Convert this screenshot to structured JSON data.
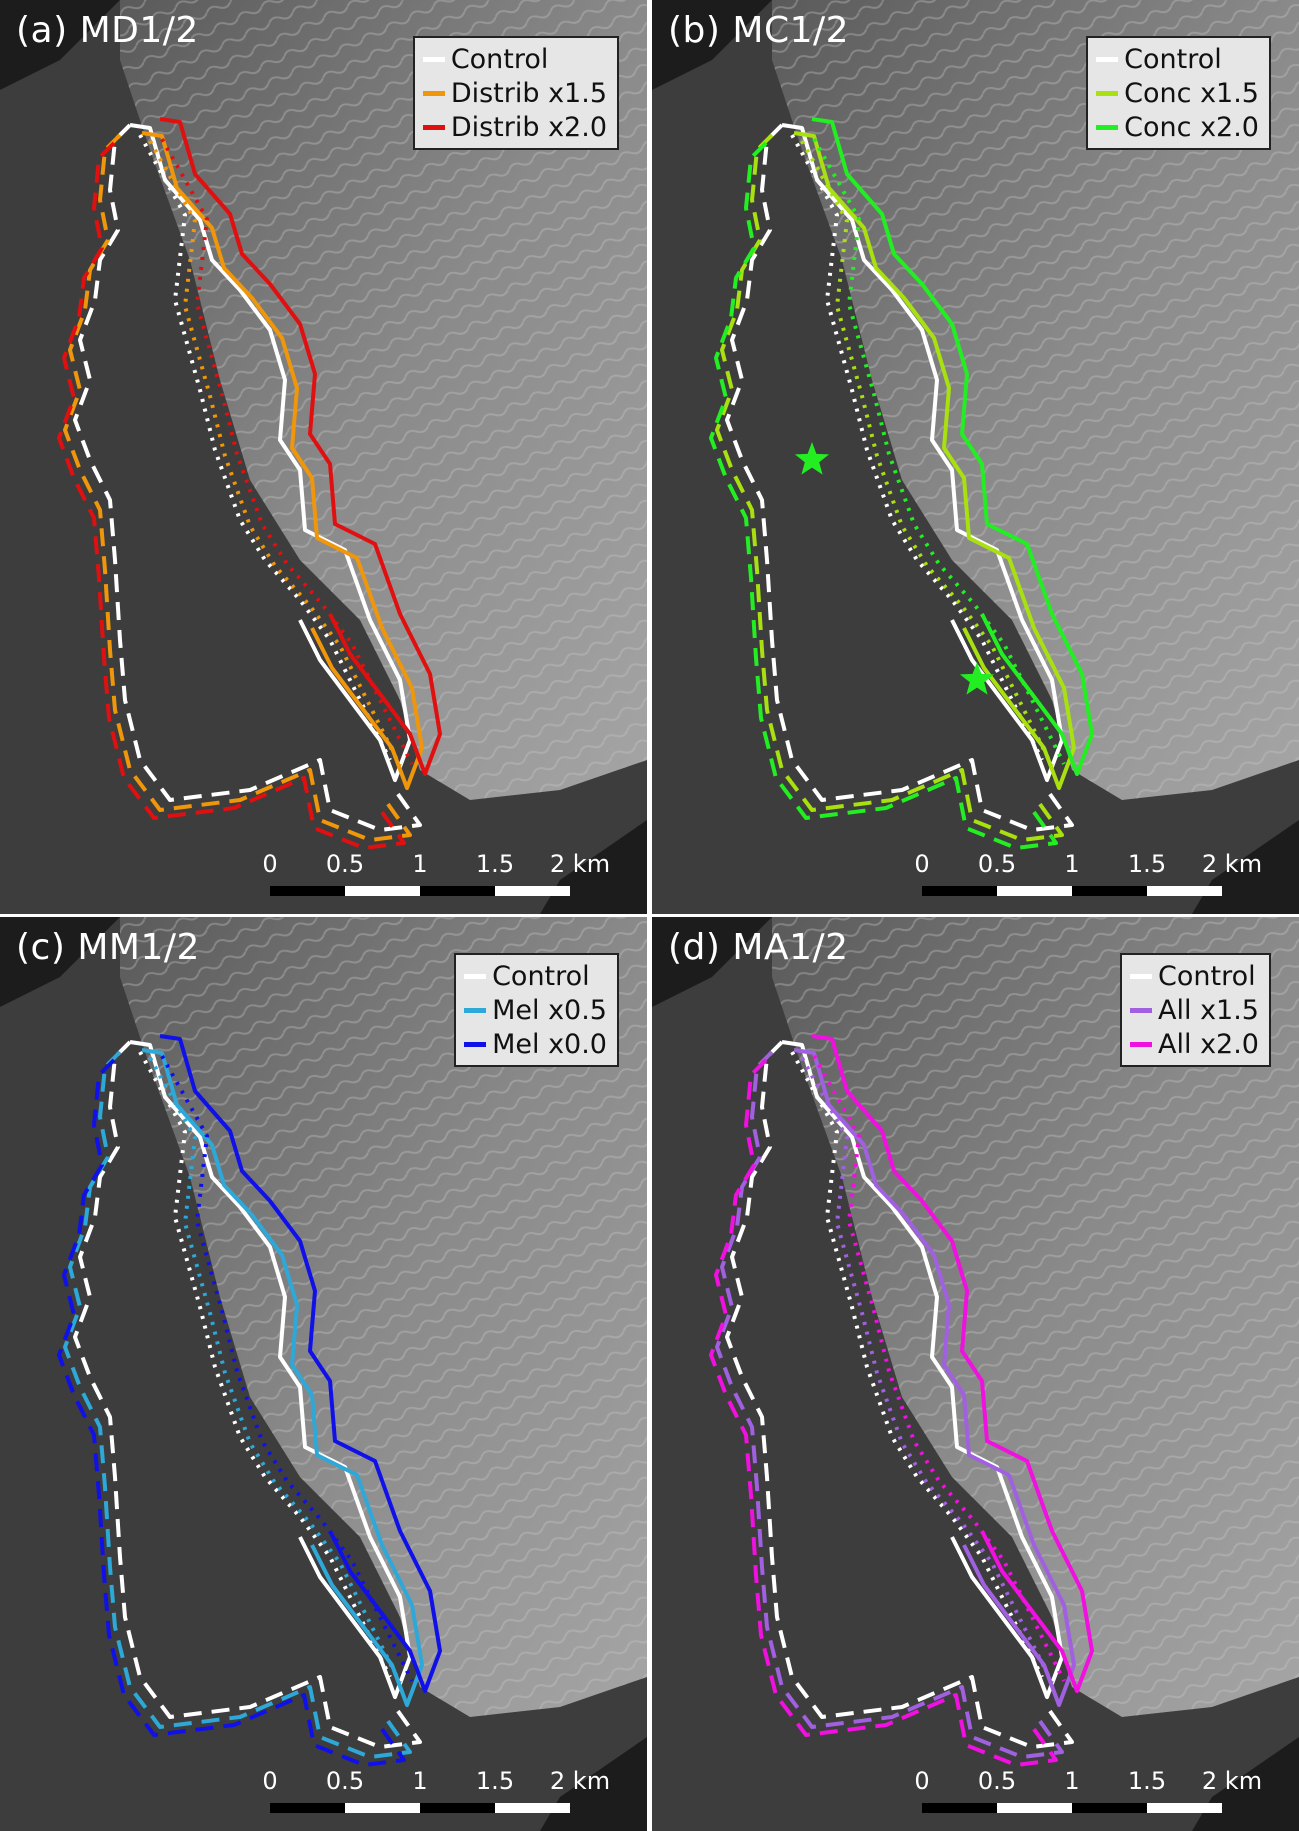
{
  "panels": [
    {
      "title": "(a) MD1/2",
      "legend": [
        {
          "label": "Control",
          "color": "#ffffff"
        },
        {
          "label": "Distrib x1.5",
          "color": "#f0960a"
        },
        {
          "label": "Distrib x2.0",
          "color": "#e01010"
        }
      ],
      "stars": []
    },
    {
      "title": "(b) MC1/2",
      "legend": [
        {
          "label": "Control",
          "color": "#ffffff"
        },
        {
          "label": "Conc x1.5",
          "color": "#a8e010"
        },
        {
          "label": "Conc x2.0",
          "color": "#22ee22"
        }
      ],
      "stars": [
        "star-icon",
        "star-icon"
      ]
    },
    {
      "title": "(c) MM1/2",
      "legend": [
        {
          "label": "Control",
          "color": "#ffffff"
        },
        {
          "label": "Mel x0.5",
          "color": "#2ea8d8"
        },
        {
          "label": "Mel x0.0",
          "color": "#1010e8"
        }
      ],
      "stars": []
    },
    {
      "title": "(d) MA1/2",
      "legend": [
        {
          "label": "Control",
          "color": "#ffffff"
        },
        {
          "label": "All x1.5",
          "color": "#a060e0"
        },
        {
          "label": "All x2.0",
          "color": "#f010e0"
        }
      ],
      "stars": []
    }
  ],
  "scale": {
    "ticks": [
      "0",
      "0.5",
      "1",
      "1.5",
      "2 km"
    ],
    "colors": [
      "#000000",
      "#ffffff"
    ]
  }
}
